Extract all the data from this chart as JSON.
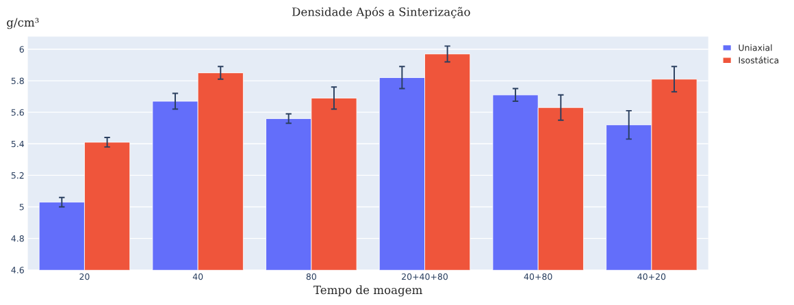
{
  "chart_data": {
    "type": "bar",
    "title": "Densidade Após a Sinterização",
    "xlabel": "Tempo de moagem",
    "ylabel": "g/cm³",
    "categories": [
      "20",
      "40",
      "80",
      "20+40+80",
      "40+80",
      "40+20"
    ],
    "series": [
      {
        "name": "Uniaxial",
        "color": "#636efa",
        "values": [
          5.03,
          5.67,
          5.56,
          5.82,
          5.71,
          5.52
        ],
        "errors": [
          0.03,
          0.05,
          0.03,
          0.07,
          0.04,
          0.09
        ]
      },
      {
        "name": "Isostática",
        "color": "#ef553b",
        "values": [
          5.41,
          5.85,
          5.69,
          5.97,
          5.63,
          5.81
        ],
        "errors": [
          0.03,
          0.04,
          0.07,
          0.05,
          0.08,
          0.08
        ]
      }
    ],
    "ylim": [
      4.6,
      6.08
    ],
    "yticks": [
      4.6,
      4.8,
      5,
      5.2,
      5.4,
      5.6,
      5.8,
      6
    ],
    "grid": "y",
    "legend": "top right"
  }
}
